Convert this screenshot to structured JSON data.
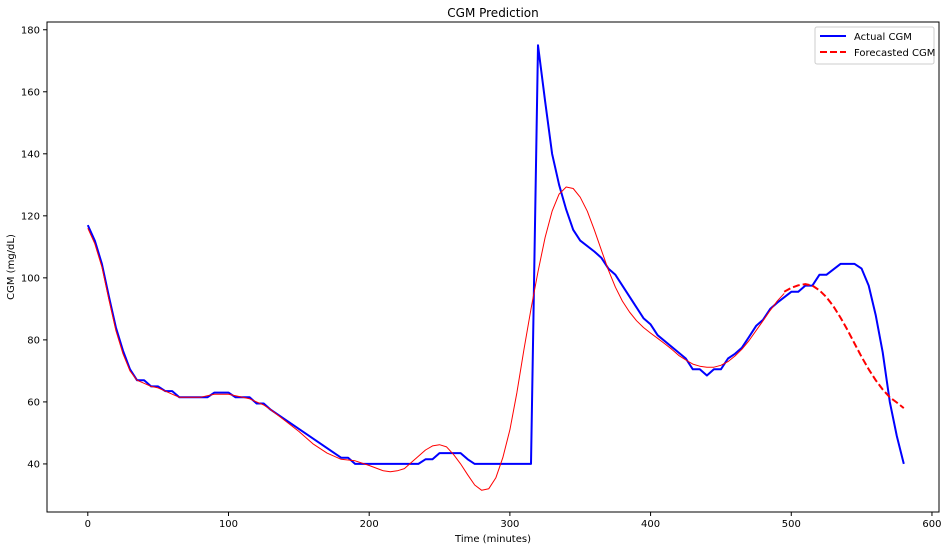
{
  "chart_data": {
    "type": "line",
    "title": "CGM Prediction",
    "xlabel": "Time (minutes)",
    "ylabel": "CGM (mg/dL)",
    "xlim": [
      -29,
      605
    ],
    "ylim": [
      24.5,
      182.5
    ],
    "xticks": [
      0,
      100,
      200,
      300,
      400,
      500,
      600
    ],
    "yticks": [
      40,
      60,
      80,
      100,
      120,
      140,
      160,
      180
    ],
    "grid": false,
    "legend_position": "top-right",
    "series": [
      {
        "name": "Actual CGM",
        "color": "#0000ff",
        "line_width": 2,
        "dash": "solid",
        "in_legend": true,
        "points": [
          [
            0,
            117
          ],
          [
            5,
            112
          ],
          [
            10,
            104.5
          ],
          [
            15,
            94
          ],
          [
            20,
            84
          ],
          [
            25,
            76.5
          ],
          [
            30,
            70.5
          ],
          [
            35,
            67
          ],
          [
            40,
            67
          ],
          [
            45,
            65
          ],
          [
            50,
            65
          ],
          [
            55,
            63.5
          ],
          [
            60,
            63.5
          ],
          [
            65,
            61.5
          ],
          [
            70,
            61.5
          ],
          [
            75,
            61.5
          ],
          [
            80,
            61.5
          ],
          [
            85,
            61.5
          ],
          [
            90,
            63
          ],
          [
            95,
            63
          ],
          [
            100,
            63
          ],
          [
            105,
            61.5
          ],
          [
            110,
            61.5
          ],
          [
            115,
            61.5
          ],
          [
            120,
            59.5
          ],
          [
            125,
            59.5
          ],
          [
            130,
            57.5
          ],
          [
            180,
            42
          ],
          [
            185,
            42
          ],
          [
            190,
            40
          ],
          [
            230,
            40
          ],
          [
            235,
            40
          ],
          [
            240,
            41.5
          ],
          [
            245,
            41.5
          ],
          [
            250,
            43.5
          ],
          [
            265,
            43.5
          ],
          [
            270,
            41.5
          ],
          [
            275,
            40
          ],
          [
            315,
            40
          ],
          [
            320,
            175
          ],
          [
            325,
            157
          ],
          [
            330,
            140
          ],
          [
            335,
            130
          ],
          [
            340,
            122
          ],
          [
            345,
            115.5
          ],
          [
            350,
            112
          ],
          [
            360,
            108.5
          ],
          [
            365,
            106.5
          ],
          [
            370,
            103
          ],
          [
            375,
            101
          ],
          [
            395,
            87
          ],
          [
            400,
            85
          ],
          [
            405,
            81.5
          ],
          [
            425,
            74
          ],
          [
            430,
            70.5
          ],
          [
            435,
            70.5
          ],
          [
            440,
            68.5
          ],
          [
            445,
            70.5
          ],
          [
            450,
            70.5
          ],
          [
            455,
            74
          ],
          [
            460,
            75.5
          ],
          [
            465,
            77.5
          ],
          [
            470,
            81
          ],
          [
            475,
            84.5
          ],
          [
            480,
            86.5
          ],
          [
            485,
            90
          ],
          [
            490,
            92
          ],
          [
            500,
            95.5
          ],
          [
            505,
            95.5
          ],
          [
            510,
            97.5
          ],
          [
            515,
            97.5
          ],
          [
            520,
            101
          ],
          [
            525,
            101
          ],
          [
            535,
            104.5
          ],
          [
            540,
            104.5
          ],
          [
            545,
            104.5
          ],
          [
            550,
            103
          ],
          [
            555,
            97.5
          ],
          [
            560,
            88
          ],
          [
            565,
            76
          ],
          [
            570,
            60
          ],
          [
            575,
            49
          ],
          [
            580,
            40
          ]
        ]
      },
      {
        "name": "",
        "color": "#ff0000",
        "line_width": 1,
        "dash": "solid",
        "in_legend": false,
        "points": [
          [
            0,
            116
          ],
          [
            5,
            111
          ],
          [
            10,
            103.5
          ],
          [
            15,
            93
          ],
          [
            20,
            83
          ],
          [
            25,
            75.5
          ],
          [
            30,
            70
          ],
          [
            35,
            67
          ],
          [
            40,
            66
          ],
          [
            45,
            65
          ],
          [
            50,
            64.5
          ],
          [
            55,
            63.5
          ],
          [
            60,
            62.5
          ],
          [
            65,
            61.5
          ],
          [
            70,
            61.5
          ],
          [
            75,
            61.5
          ],
          [
            80,
            61.5
          ],
          [
            85,
            62
          ],
          [
            90,
            62.5
          ],
          [
            95,
            62.5
          ],
          [
            100,
            62.5
          ],
          [
            105,
            62
          ],
          [
            110,
            61.5
          ],
          [
            115,
            61
          ],
          [
            120,
            60
          ],
          [
            125,
            59
          ],
          [
            130,
            57.5
          ],
          [
            140,
            54
          ],
          [
            150,
            50.5
          ],
          [
            160,
            46.5
          ],
          [
            170,
            43.5
          ],
          [
            180,
            41.5
          ],
          [
            190,
            41
          ],
          [
            200,
            39.5
          ],
          [
            210,
            37.8
          ],
          [
            215,
            37.5
          ],
          [
            220,
            37.8
          ],
          [
            225,
            38.5
          ],
          [
            230,
            40.5
          ],
          [
            235,
            42.5
          ],
          [
            240,
            44.5
          ],
          [
            245,
            45.8
          ],
          [
            250,
            46.2
          ],
          [
            255,
            45.5
          ],
          [
            260,
            43
          ],
          [
            265,
            40
          ],
          [
            270,
            36.5
          ],
          [
            275,
            33.2
          ],
          [
            280,
            31.5
          ],
          [
            285,
            32
          ],
          [
            290,
            35.5
          ],
          [
            295,
            42
          ],
          [
            300,
            51
          ],
          [
            305,
            63
          ],
          [
            310,
            77
          ],
          [
            315,
            90
          ],
          [
            320,
            102
          ],
          [
            325,
            113
          ],
          [
            330,
            121.5
          ],
          [
            335,
            127
          ],
          [
            340,
            129.3
          ],
          [
            345,
            128.8
          ],
          [
            350,
            126
          ],
          [
            355,
            121.5
          ],
          [
            360,
            115.5
          ],
          [
            365,
            109
          ],
          [
            370,
            102.5
          ],
          [
            375,
            97
          ],
          [
            380,
            92.5
          ],
          [
            385,
            89
          ],
          [
            390,
            86.2
          ],
          [
            395,
            84
          ],
          [
            400,
            82.2
          ],
          [
            405,
            80.5
          ],
          [
            410,
            78.8
          ],
          [
            415,
            77
          ],
          [
            420,
            75
          ],
          [
            425,
            73.5
          ],
          [
            430,
            72.2
          ],
          [
            435,
            71.5
          ],
          [
            440,
            71.2
          ],
          [
            445,
            71.2
          ],
          [
            450,
            71.8
          ],
          [
            455,
            73
          ],
          [
            460,
            74.8
          ],
          [
            465,
            77
          ],
          [
            470,
            79.8
          ],
          [
            475,
            83
          ],
          [
            480,
            86.2
          ],
          [
            485,
            89.5
          ],
          [
            490,
            92.5
          ],
          [
            495,
            95
          ]
        ]
      },
      {
        "name": "Forecasted CGM",
        "color": "#ff0000",
        "line_width": 2,
        "dash": "dashed",
        "in_legend": true,
        "points": [
          [
            495,
            95.5
          ],
          [
            500,
            96.8
          ],
          [
            505,
            97.6
          ],
          [
            510,
            98
          ],
          [
            515,
            97.5
          ],
          [
            520,
            96
          ],
          [
            525,
            93.8
          ],
          [
            530,
            90.8
          ],
          [
            535,
            87.2
          ],
          [
            540,
            83.2
          ],
          [
            545,
            78.8
          ],
          [
            550,
            74.5
          ],
          [
            555,
            70.5
          ],
          [
            560,
            67
          ],
          [
            565,
            64
          ],
          [
            570,
            61.5
          ],
          [
            575,
            59.8
          ],
          [
            580,
            58
          ]
        ]
      }
    ]
  }
}
